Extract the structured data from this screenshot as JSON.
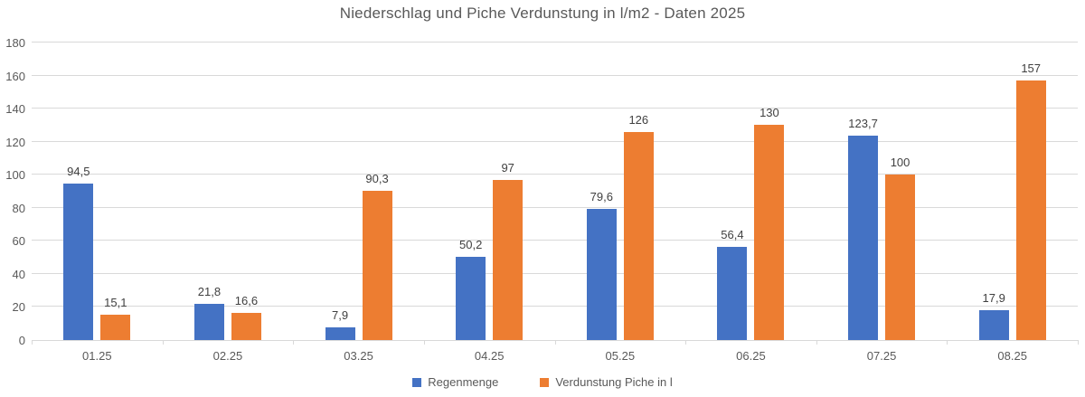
{
  "chart_data": {
    "type": "bar",
    "title": "Niederschlag und Piche Verdunstung in l/m2  - Daten 2025",
    "categories": [
      "01.25",
      "02.25",
      "03.25",
      "04.25",
      "05.25",
      "06.25",
      "07.25",
      "08.25"
    ],
    "series": [
      {
        "name": "Regenmenge",
        "color": "#4472C4",
        "values": [
          94.5,
          21.8,
          7.9,
          50.2,
          79.6,
          56.4,
          123.7,
          17.9
        ],
        "labels": [
          "94,5",
          "21,8",
          "7,9",
          "50,2",
          "79,6",
          "56,4",
          "123,7",
          "17,9"
        ]
      },
      {
        "name": "Verdunstung Piche in l",
        "color": "#ED7D31",
        "values": [
          15.1,
          16.6,
          90.3,
          97,
          126,
          130,
          100,
          157
        ],
        "labels": [
          "15,1",
          "16,6",
          "90,3",
          "97",
          "126",
          "130",
          "100",
          "157"
        ]
      }
    ],
    "xlabel": "",
    "ylabel": "",
    "ylim": [
      0,
      180
    ],
    "ytick_interval": 20,
    "yticks": [
      0,
      20,
      40,
      60,
      80,
      100,
      120,
      140,
      160,
      180
    ],
    "grid": true,
    "legend_position": "bottom"
  },
  "colors": {
    "background": "#ffffff",
    "gridline": "#d9d9d9",
    "axis_text": "#595959",
    "data_label_text": "#404040",
    "title_text": "#595959",
    "series_blue": "#4472C4",
    "series_orange": "#ED7D31"
  }
}
